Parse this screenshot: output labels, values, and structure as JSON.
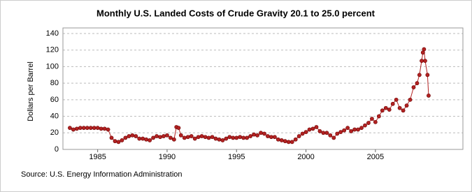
{
  "chart_data": {
    "type": "line",
    "title": "Monthly U.S. Landed Costs of Crude Gravity 20.1 to 25.0 percent",
    "y_label": "Dollars per Barrel",
    "source": "Source: U.S. Energy Information Administration",
    "x": [
      1983.0,
      1983.25,
      1983.5,
      1983.75,
      1984.0,
      1984.25,
      1984.5,
      1984.75,
      1985.0,
      1985.25,
      1985.5,
      1985.75,
      1986.0,
      1986.25,
      1986.5,
      1986.75,
      1987.0,
      1987.25,
      1987.5,
      1987.75,
      1988.0,
      1988.25,
      1988.5,
      1988.75,
      1989.0,
      1989.25,
      1989.5,
      1989.75,
      1990.0,
      1990.25,
      1990.5,
      1990.67,
      1990.83,
      1991.0,
      1991.25,
      1991.5,
      1991.75,
      1992.0,
      1992.25,
      1992.5,
      1992.75,
      1993.0,
      1993.25,
      1993.5,
      1993.75,
      1994.0,
      1994.25,
      1994.5,
      1994.75,
      1995.0,
      1995.25,
      1995.5,
      1995.75,
      1996.0,
      1996.25,
      1996.5,
      1996.75,
      1997.0,
      1997.25,
      1997.5,
      1997.75,
      1998.0,
      1998.25,
      1998.5,
      1998.75,
      1999.0,
      1999.25,
      1999.5,
      1999.75,
      2000.0,
      2000.25,
      2000.5,
      2000.75,
      2001.0,
      2001.25,
      2001.5,
      2001.75,
      2002.0,
      2002.25,
      2002.5,
      2002.75,
      2003.0,
      2003.25,
      2003.5,
      2003.75,
      2004.0,
      2004.25,
      2004.5,
      2004.75,
      2005.0,
      2005.25,
      2005.5,
      2005.75,
      2006.0,
      2006.25,
      2006.5,
      2006.75,
      2007.0,
      2007.25,
      2007.5,
      2007.75,
      2008.0,
      2008.17,
      2008.33,
      2008.42,
      2008.5,
      2008.58,
      2008.75,
      2008.83
    ],
    "series": [
      {
        "name": "Landed cost",
        "color": "#b22222",
        "values": [
          26,
          24,
          25,
          26,
          26,
          26,
          26,
          26,
          26,
          25,
          25,
          24,
          14,
          10,
          9,
          11,
          14,
          16,
          17,
          16,
          13,
          13,
          12,
          11,
          14,
          16,
          15,
          16,
          17,
          14,
          12,
          27,
          26,
          17,
          14,
          15,
          16,
          13,
          15,
          16,
          15,
          14,
          15,
          13,
          12,
          11,
          13,
          15,
          14,
          14,
          15,
          14,
          14,
          16,
          18,
          17,
          20,
          19,
          16,
          15,
          15,
          12,
          11,
          10,
          9,
          9,
          12,
          16,
          19,
          21,
          24,
          25,
          27,
          22,
          20,
          20,
          17,
          14,
          19,
          21,
          23,
          26,
          22,
          24,
          24,
          26,
          29,
          32,
          37,
          33,
          40,
          47,
          50,
          48,
          55,
          60,
          50,
          47,
          53,
          60,
          75,
          80,
          90,
          107,
          117,
          121,
          107,
          90,
          65
        ]
      }
    ],
    "xlim": [
      1982.5,
      2011.3
    ],
    "xticks": [
      1985,
      1990,
      1995,
      2000,
      2005
    ],
    "ylim": [
      0,
      140
    ],
    "yticks": [
      0,
      20,
      40,
      60,
      80,
      100,
      120,
      140
    ],
    "grid": true
  }
}
